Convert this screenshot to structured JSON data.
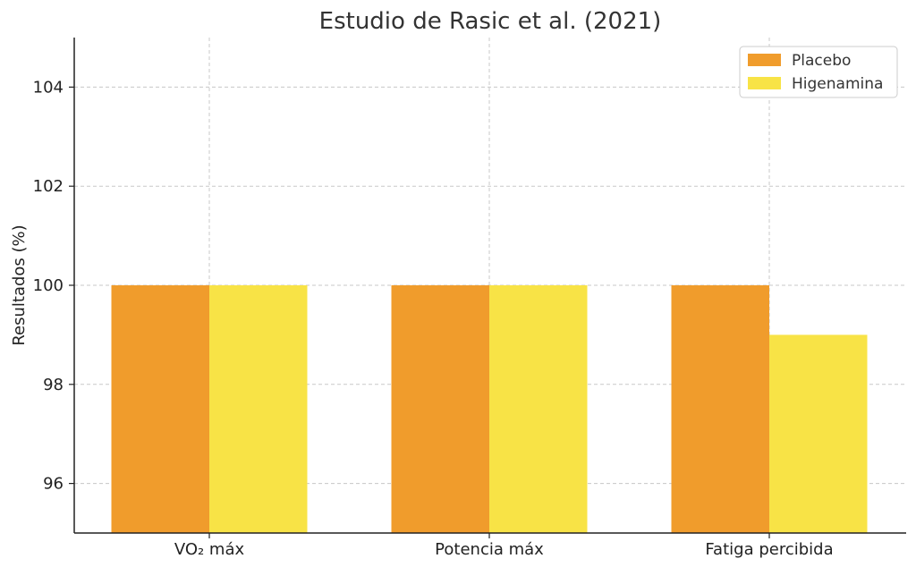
{
  "chart_data": {
    "type": "bar",
    "title": "Estudio de Rasic et al. (2021)",
    "xlabel": "",
    "ylabel": "Resultados (%)",
    "categories": [
      "VO₂ máx",
      "Potencia máx",
      "Fatiga percibida"
    ],
    "series": [
      {
        "name": "Placebo",
        "values": [
          100,
          100,
          100
        ],
        "color": "#F09C2C"
      },
      {
        "name": "Higenamina",
        "values": [
          100,
          100,
          99
        ],
        "color": "#F8E346"
      }
    ],
    "ylim": [
      95,
      105
    ],
    "yticks": [
      96,
      98,
      100,
      102,
      104
    ],
    "grid": true,
    "legend_position": "top-right"
  }
}
